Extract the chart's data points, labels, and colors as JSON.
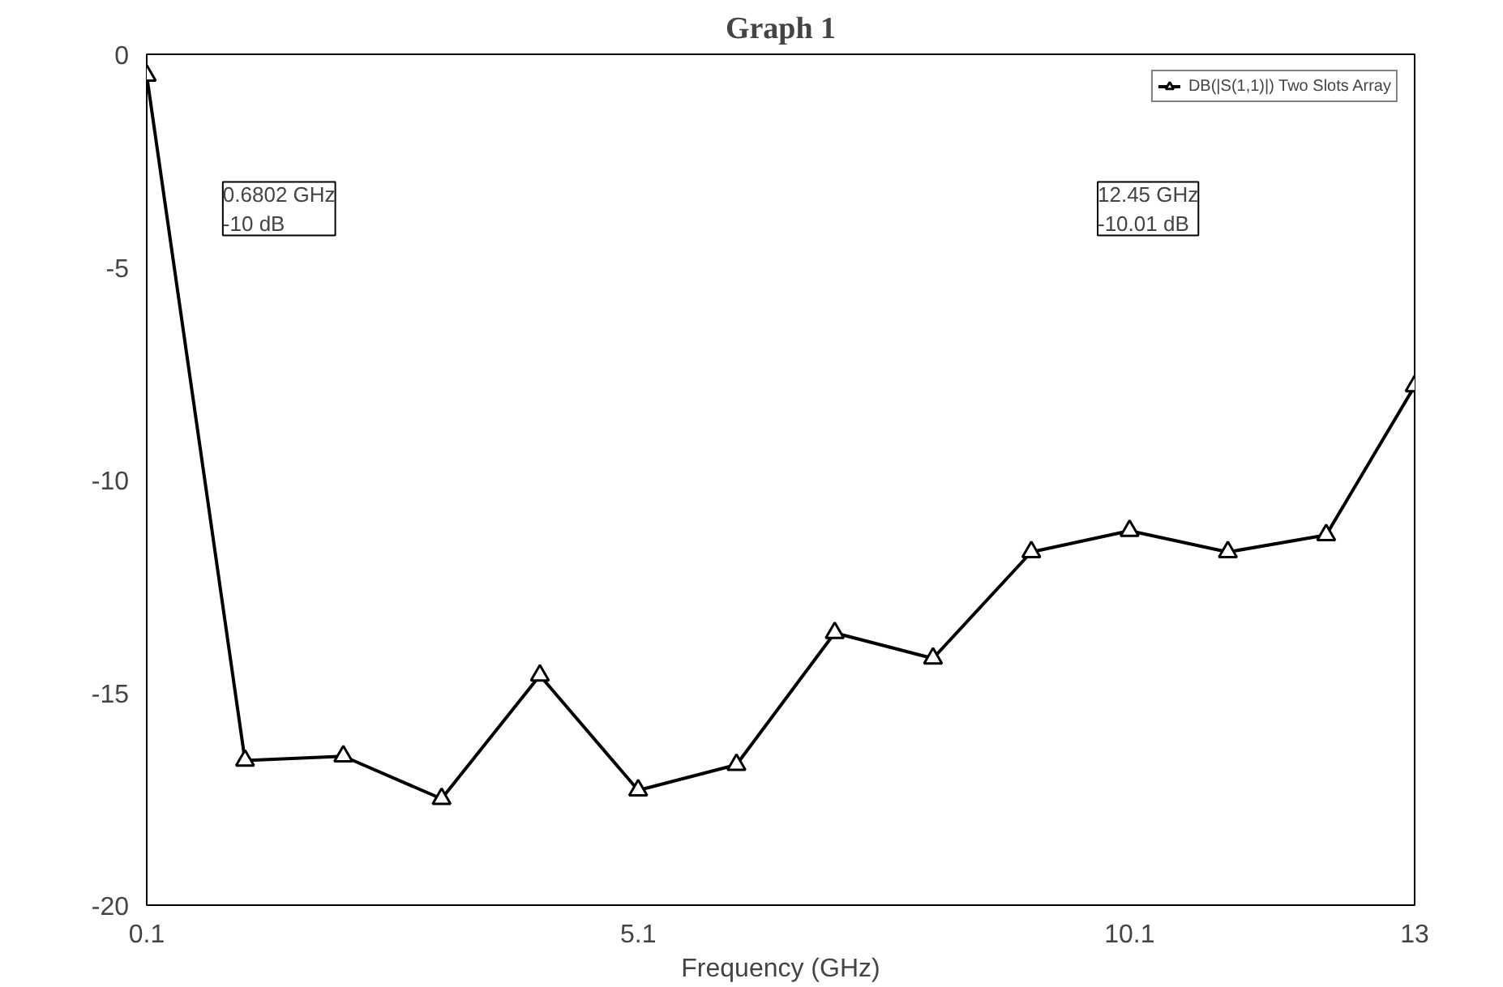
{
  "chart_data": {
    "type": "line",
    "title": "Graph 1",
    "xlabel": "Frequency (GHz)",
    "x": [
      0.1,
      1.1,
      2.1,
      3.1,
      4.1,
      5.1,
      6.1,
      7.1,
      8.1,
      9.1,
      10.1,
      11.1,
      12.1,
      13
    ],
    "series": [
      {
        "name": "DB(|S(1,1)|) Two Slots Array",
        "color": "#000000",
        "values": [
          -0.5,
          -16.6,
          -16.5,
          -17.5,
          -14.6,
          -17.3,
          -16.7,
          -13.6,
          -14.2,
          -11.7,
          -11.2,
          -11.7,
          -11.3,
          -7.8
        ]
      }
    ],
    "annotations": [
      "0.6802 GHz\n-10 dB",
      "12.45 GHz\n-10.01 dB"
    ],
    "xlim": [
      0.1,
      13
    ],
    "ylim": [
      -20,
      0
    ],
    "xticks": [
      0.1,
      5.1,
      10.1,
      13
    ],
    "yticks": [
      0,
      -5,
      -10,
      -15,
      -20
    ],
    "grid": false,
    "legend": "top right",
    "marker": "triangle",
    "line_style": "solid"
  }
}
